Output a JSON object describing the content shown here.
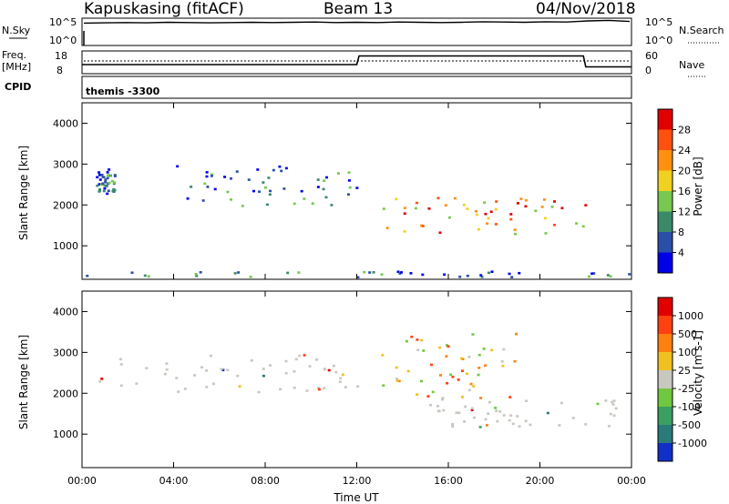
{
  "header": {
    "station": "Kapuskasing (fitACF)",
    "beam": "Beam 13",
    "date": "04/Nov/2018"
  },
  "strip": {
    "nsky_label": "N.Sky",
    "nsky_ticks": [
      "10^5",
      "10^0"
    ],
    "nsearch_label": "N.Search",
    "nsearch_ticks": [
      "10^5",
      "10^0"
    ],
    "freq_label": "Freq.",
    "freq_unit": "[MHz]",
    "freq_ticks": [
      "18",
      "8"
    ],
    "nave_label": "Nave",
    "nave_ticks": [
      "60",
      "0"
    ],
    "cpid_label": "CPID",
    "cpid_value": "themis -3300"
  },
  "chart_data": [
    {
      "type": "heatmap",
      "parameter": "Power",
      "ylabel": "Slant Range [km]",
      "xlabel": "",
      "ylim": [
        180,
        4500
      ],
      "yticks": [
        1000,
        2000,
        3000,
        4000
      ],
      "xlim_hours": [
        0,
        24
      ],
      "colorbar": {
        "label": "Power [dB]",
        "ticks": [
          "4",
          "8",
          "12",
          "16",
          "20",
          "24",
          "28"
        ],
        "colors": [
          "#0000e8",
          "#2a4fa8",
          "#3a8a6a",
          "#78c850",
          "#f0d020",
          "#ff9010",
          "#ff5010",
          "#e00000"
        ]
      },
      "features": [
        {
          "desc": "near range ground scatter",
          "t0": 0,
          "t1": 24,
          "r0": 200,
          "r1": 400,
          "dominant": "blue-green"
        },
        {
          "desc": "early band",
          "t0": 0.6,
          "t1": 1.4,
          "r0": 2300,
          "r1": 2900,
          "dominant": "blue/green"
        },
        {
          "desc": "descending trail",
          "t0": 4,
          "t1": 12,
          "r0": 2000,
          "r1": 3000,
          "dominant": "blue/green"
        },
        {
          "desc": "enhanced band",
          "t0": 13,
          "t1": 22,
          "r0": 1300,
          "r1": 2200,
          "dominant": "orange/red"
        }
      ]
    },
    {
      "type": "heatmap",
      "parameter": "Velocity",
      "ylabel": "Slant Range [km]",
      "xlabel": "Time UT",
      "ylim": [
        180,
        4500
      ],
      "yticks": [
        1000,
        2000,
        3000,
        4000
      ],
      "xlim_hours": [
        0,
        24
      ],
      "xticks": [
        "00:00",
        "04:00",
        "08:00",
        "12:00",
        "16:00",
        "20:00",
        "00:00"
      ],
      "colorbar": {
        "label": "Velocity [m s-1]",
        "ticks": [
          "1000",
          "500",
          "100",
          "25",
          "-25",
          "-100",
          "-500",
          "-1000"
        ],
        "colors": [
          "#1030c8",
          "#2a7a7a",
          "#3aa060",
          "#70c840",
          "#c8c8c0",
          "#f0c020",
          "#ff8010",
          "#ff4010",
          "#e00000"
        ]
      },
      "features": [
        {
          "desc": "ground scatter grey band",
          "t0": 0.6,
          "t1": 12,
          "r0": 2000,
          "r1": 3000,
          "dominant": "grey"
        },
        {
          "desc": "receding ionospheric echoes",
          "t0": 13,
          "t1": 19,
          "r0": 1900,
          "r1": 3500,
          "dominant": "orange/red"
        },
        {
          "desc": "low velocity band",
          "t0": 15,
          "t1": 23.5,
          "r0": 1200,
          "r1": 1900,
          "dominant": "grey"
        }
      ]
    }
  ],
  "nsky_trace": [
    0.82,
    0.83,
    0.84,
    0.83,
    0.85,
    0.84,
    0.83,
    0.84,
    0.85,
    0.84,
    0.85,
    0.86,
    0.84,
    0.85,
    0.84,
    0.86,
    0.85,
    0.84,
    0.85,
    0.87,
    0.86,
    0.85,
    0.87,
    0.86,
    0.9,
    0.92,
    0.88
  ],
  "freq_trace_hours": [
    [
      0,
      0.6
    ],
    [
      12,
      0.6
    ],
    [
      12.1,
      0.22
    ],
    [
      21.9,
      0.22
    ],
    [
      22,
      0.7
    ],
    [
      24,
      0.7
    ]
  ]
}
